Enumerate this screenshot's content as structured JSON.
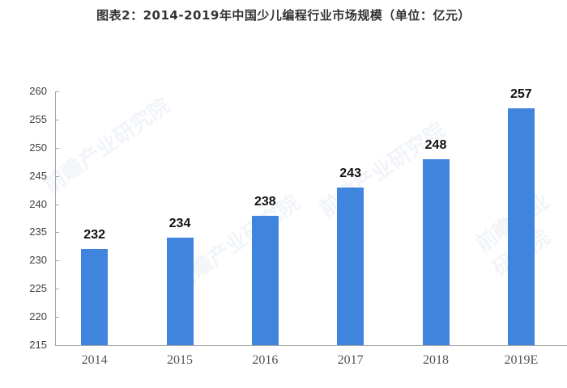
{
  "title": "图表2：2014-2019年中国少儿编程行业市场规模（单位：亿元）",
  "watermark": "前瞻产业研究院",
  "colors": {
    "bar": "#3f84dd",
    "axis": "#a6a6a6"
  },
  "chart_data": {
    "type": "bar",
    "title": "图表2：2014-2019年中国少儿编程行业市场规模（单位：亿元）",
    "categories": [
      "2014",
      "2015",
      "2016",
      "2017",
      "2018",
      "2019E"
    ],
    "values": [
      232,
      234,
      238,
      243,
      248,
      257
    ],
    "xlabel": "",
    "ylabel": "亿元",
    "ylim": [
      215,
      260
    ],
    "yticks": [
      215,
      220,
      225,
      230,
      235,
      240,
      245,
      250,
      255,
      260
    ],
    "data_labels": true,
    "grid": false,
    "legend": "none"
  }
}
